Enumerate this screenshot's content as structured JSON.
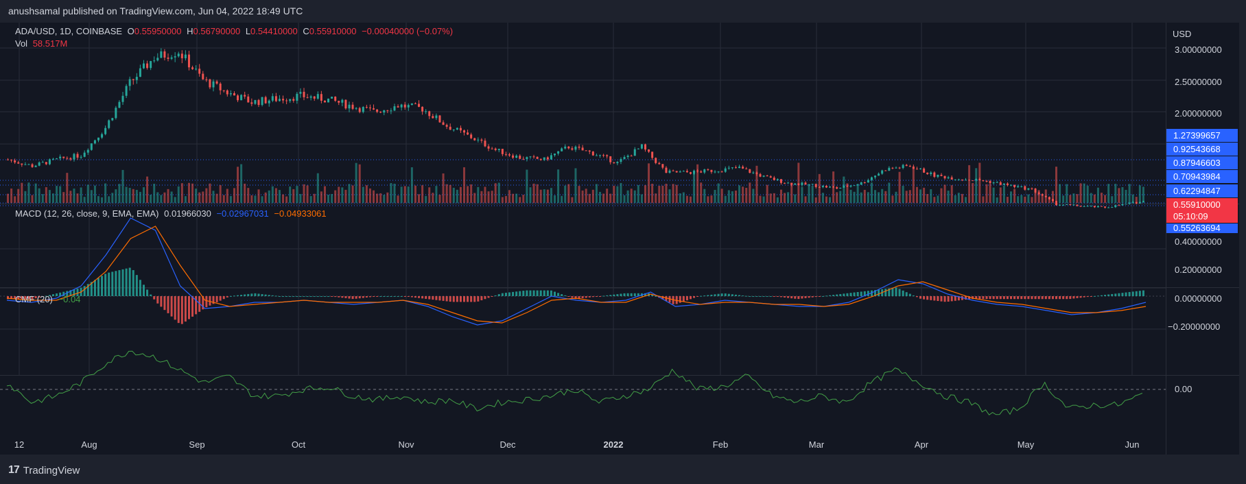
{
  "header": {
    "publisher_line": "anushsamal published on TradingView.com, Jun 04, 2022 18:49 UTC"
  },
  "legend": {
    "symbol": "ADA/USD, 1D, COINBASE",
    "open_label": "O",
    "open": "0.55950000",
    "high_label": "H",
    "high": "0.56790000",
    "low_label": "L",
    "low": "0.54410000",
    "close_label": "C",
    "close": "0.55910000",
    "change": "−0.00040000 (−0.07%)",
    "vol_label": "Vol",
    "vol": "58.517M",
    "macd_label": "MACD (12, 26, close, 9, EMA, EMA)",
    "macd_hist": "0.01966030",
    "macd_line": "−0.02967031",
    "macd_signal": "−0.04933061",
    "cmf_label": "CMF (20)",
    "cmf": "−0.04"
  },
  "price_axis": {
    "currency": "USD",
    "ticks": [
      "3.00000000",
      "2.50000000",
      "2.00000000"
    ],
    "macd_ticks": [
      "0.40000000",
      "0.20000000",
      "0.00000000",
      "−0.20000000"
    ],
    "cmf_ticks": [
      "0.00"
    ],
    "level_tags": [
      "1.27399657",
      "0.92543668",
      "0.87946603",
      "0.70943984",
      "0.62294847"
    ],
    "last_price": "0.55910000",
    "countdown": "05:10:09",
    "low_tag": "0.55263694"
  },
  "time_axis": [
    "12",
    "Aug",
    "Sep",
    "Oct",
    "Nov",
    "Dec",
    "2022",
    "Feb",
    "Mar",
    "Apr",
    "May",
    "Jun"
  ],
  "footer": {
    "brand": "TradingView",
    "logo_glyph": "17"
  },
  "colors": {
    "up": "#26a69a",
    "down": "#ef5350",
    "macd": "#2962ff",
    "signal": "#ff6d00",
    "cmf": "#43a047",
    "tag": "#2962ff",
    "last": "#f23645"
  },
  "chart_data": [
    {
      "type": "candlestick",
      "title": "ADA/USD, 1D, COINBASE",
      "ylabel": "USD",
      "ylim": [
        0.5,
        3.1
      ],
      "x": [
        "2021-07-12",
        "2021-07-19",
        "2021-07-26",
        "2021-08-02",
        "2021-08-09",
        "2021-08-16",
        "2021-08-23",
        "2021-08-30",
        "2021-09-06",
        "2021-09-13",
        "2021-09-20",
        "2021-09-27",
        "2021-10-04",
        "2021-10-11",
        "2021-10-18",
        "2021-10-25",
        "2021-11-01",
        "2021-11-08",
        "2021-11-15",
        "2021-11-22",
        "2021-11-29",
        "2021-12-06",
        "2021-12-13",
        "2021-12-20",
        "2021-12-27",
        "2022-01-03",
        "2022-01-10",
        "2022-01-17",
        "2022-01-24",
        "2022-01-31",
        "2022-02-07",
        "2022-02-14",
        "2022-02-21",
        "2022-02-28",
        "2022-03-07",
        "2022-03-14",
        "2022-03-21",
        "2022-03-28",
        "2022-04-04",
        "2022-04-11",
        "2022-04-18",
        "2022-04-25",
        "2022-05-02",
        "2022-05-09",
        "2022-05-16",
        "2022-05-23",
        "2022-05-30"
      ],
      "close": [
        1.25,
        1.15,
        1.25,
        1.32,
        1.75,
        2.45,
        2.85,
        2.95,
        2.5,
        2.3,
        2.15,
        2.2,
        2.25,
        2.2,
        2.1,
        2.0,
        2.1,
        2.05,
        1.78,
        1.6,
        1.4,
        1.28,
        1.25,
        1.45,
        1.35,
        1.2,
        1.45,
        1.05,
        1.05,
        1.08,
        1.12,
        0.98,
        0.88,
        0.85,
        0.8,
        0.88,
        1.1,
        1.15,
        1.0,
        0.95,
        0.92,
        0.85,
        0.78,
        0.55,
        0.52,
        0.5,
        0.56
      ],
      "volume_label": "Vol",
      "last_volume": "58.517M"
    },
    {
      "type": "line",
      "title": "MACD (12, 26, close, 9, EMA, EMA)",
      "ylim": [
        -0.2,
        0.4
      ],
      "series": [
        {
          "name": "MACD",
          "values": [
            -0.02,
            -0.03,
            -0.01,
            0.05,
            0.2,
            0.38,
            0.32,
            0.05,
            -0.06,
            -0.05,
            -0.03,
            -0.03,
            -0.02,
            -0.03,
            -0.04,
            -0.03,
            -0.02,
            -0.05,
            -0.1,
            -0.14,
            -0.12,
            -0.06,
            0.0,
            -0.02,
            -0.03,
            -0.02,
            0.02,
            -0.05,
            -0.04,
            -0.02,
            -0.03,
            -0.04,
            -0.05,
            -0.05,
            -0.03,
            0.02,
            0.08,
            0.06,
            0.01,
            -0.02,
            -0.04,
            -0.05,
            -0.07,
            -0.09,
            -0.08,
            -0.06,
            -0.03
          ]
        },
        {
          "name": "Signal",
          "values": [
            -0.01,
            -0.02,
            -0.02,
            0.02,
            0.12,
            0.28,
            0.34,
            0.15,
            -0.02,
            -0.05,
            -0.04,
            -0.03,
            -0.02,
            -0.03,
            -0.03,
            -0.03,
            -0.02,
            -0.04,
            -0.08,
            -0.12,
            -0.13,
            -0.08,
            -0.02,
            -0.01,
            -0.03,
            -0.03,
            0.01,
            -0.02,
            -0.04,
            -0.03,
            -0.03,
            -0.04,
            -0.04,
            -0.05,
            -0.04,
            0.0,
            0.05,
            0.07,
            0.03,
            -0.01,
            -0.03,
            -0.04,
            -0.06,
            -0.08,
            -0.08,
            -0.07,
            -0.05
          ]
        }
      ],
      "histogram_last": "0.01966030"
    },
    {
      "type": "line",
      "title": "CMF (20)",
      "series": [
        {
          "name": "CMF",
          "values": [
            0.05,
            -0.1,
            -0.05,
            0.05,
            0.2,
            0.3,
            0.25,
            0.15,
            0.05,
            0.1,
            -0.05,
            -0.05,
            0.0,
            0.02,
            -0.05,
            -0.08,
            -0.05,
            -0.1,
            -0.08,
            -0.15,
            -0.1,
            -0.08,
            -0.05,
            0.0,
            -0.1,
            -0.05,
            0.0,
            0.15,
            0.0,
            0.02,
            0.1,
            -0.05,
            -0.1,
            -0.05,
            -0.1,
            0.05,
            0.15,
            0.05,
            -0.05,
            -0.1,
            -0.2,
            -0.15,
            0.05,
            -0.15,
            -0.12,
            -0.12,
            -0.04
          ]
        }
      ],
      "reference_line": 0.0
    }
  ]
}
